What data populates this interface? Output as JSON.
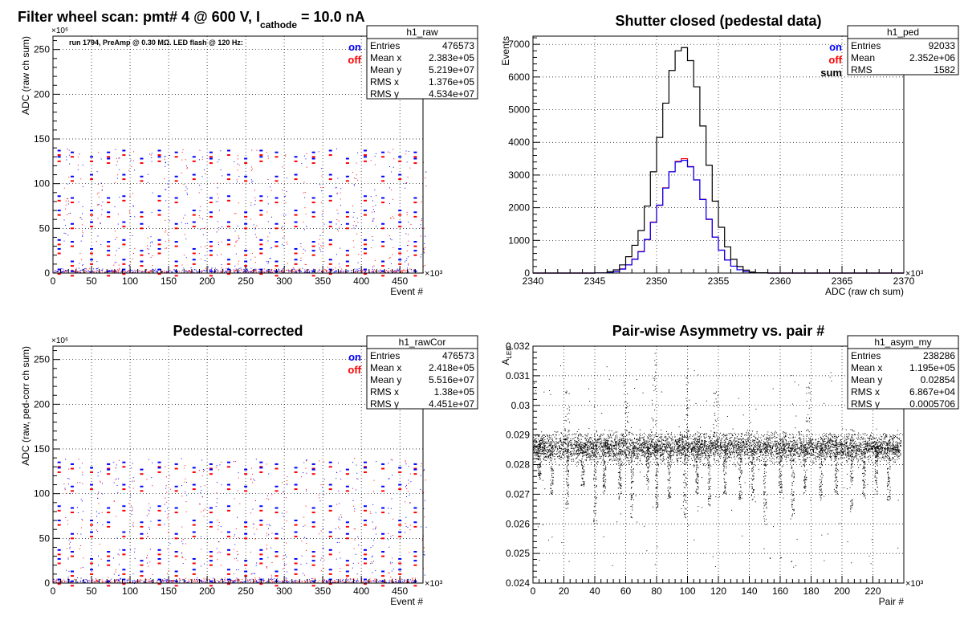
{
  "pads": [
    {
      "id": "raw",
      "title_main": "Filter wheel scan: pmt#   4 @   600 V, I",
      "title_sub": "cathode",
      "title_rest": "  = 10.0 nA",
      "annotation": "run 1794, PreAmp @ 0.30 MΩ. LED flash @  120 Hz:",
      "xlabel": "Event #",
      "ylabel": "ADC (raw ch sum)",
      "x_exponent": "×10³",
      "y_exponent": "×10⁶",
      "xlim": [
        0,
        480
      ],
      "ylim": [
        0,
        265
      ],
      "xticks": [
        "0",
        "50",
        "100",
        "150",
        "200",
        "250",
        "300",
        "350",
        "400",
        "450"
      ],
      "xtick_values": [
        0,
        50,
        100,
        150,
        200,
        250,
        300,
        350,
        400,
        450
      ],
      "yticks": [
        "0",
        "50",
        "100",
        "150",
        "200",
        "250"
      ],
      "ytick_values": [
        0,
        50,
        100,
        150,
        200,
        250
      ],
      "legend": [
        {
          "label": "on",
          "color": "#0000ff"
        },
        {
          "label": "off",
          "color": "#ff0000"
        }
      ],
      "stats": {
        "name": "h1_raw",
        "rows": [
          [
            "Entries",
            "476573"
          ],
          [
            "Mean x",
            "2.383e+05"
          ],
          [
            "Mean y",
            "5.219e+07"
          ],
          [
            "RMS x",
            "1.376e+05"
          ],
          [
            "RMS y",
            "4.534e+07"
          ]
        ]
      }
    },
    {
      "id": "ped",
      "title_main": "Shutter closed (pedestal data)",
      "xlabel": "ADC (raw ch sum)",
      "ylabel": "Events",
      "x_exponent": "×10³",
      "xlim": [
        2340,
        2370
      ],
      "ylim": [
        0,
        7250
      ],
      "xticks": [
        "2340",
        "2345",
        "2350",
        "2355",
        "2360",
        "2365",
        "2370"
      ],
      "xtick_values": [
        2340,
        2345,
        2350,
        2355,
        2360,
        2365,
        2370
      ],
      "yticks": [
        "0",
        "1000",
        "2000",
        "3000",
        "4000",
        "5000",
        "6000",
        "7000"
      ],
      "ytick_values": [
        0,
        1000,
        2000,
        3000,
        4000,
        5000,
        6000,
        7000
      ],
      "legend": [
        {
          "label": "on",
          "color": "#0000ff"
        },
        {
          "label": "off",
          "color": "#ff0000"
        },
        {
          "label": "sum",
          "color": "#000000"
        }
      ],
      "stats": {
        "name": "h1_ped",
        "rows": [
          [
            "Entries",
            "92033"
          ],
          [
            "Mean",
            "2.352e+06"
          ],
          [
            "RMS",
            "1582"
          ]
        ]
      }
    },
    {
      "id": "cor",
      "title_main": "Pedestal-corrected",
      "xlabel": "Event #",
      "ylabel": "ADC (raw, ped-corr ch sum)",
      "x_exponent": "×10³",
      "y_exponent": "×10⁶",
      "xlim": [
        0,
        480
      ],
      "ylim": [
        0,
        265
      ],
      "xticks": [
        "0",
        "50",
        "100",
        "150",
        "200",
        "250",
        "300",
        "350",
        "400",
        "450"
      ],
      "xtick_values": [
        0,
        50,
        100,
        150,
        200,
        250,
        300,
        350,
        400,
        450
      ],
      "yticks": [
        "0",
        "50",
        "100",
        "150",
        "200",
        "250"
      ],
      "ytick_values": [
        0,
        50,
        100,
        150,
        200,
        250
      ],
      "legend": [
        {
          "label": "on",
          "color": "#0000ff"
        },
        {
          "label": "off",
          "color": "#ff0000"
        }
      ],
      "stats": {
        "name": "h1_rawCor",
        "rows": [
          [
            "Entries",
            "476573"
          ],
          [
            "Mean x",
            "2.418e+05"
          ],
          [
            "Mean y",
            "5.516e+07"
          ],
          [
            "RMS x",
            "1.38e+05"
          ],
          [
            "RMS y",
            "4.451e+07"
          ]
        ]
      }
    },
    {
      "id": "asym",
      "title_main": "Pair-wise Asymmetry vs. pair #",
      "xlabel": "Pair #",
      "ylabel_main": "A",
      "ylabel_sub": "LED",
      "x_exponent": "×10³",
      "xlim": [
        0,
        240
      ],
      "ylim": [
        0.024,
        0.032
      ],
      "xticks": [
        "0",
        "20",
        "40",
        "60",
        "80",
        "100",
        "120",
        "140",
        "160",
        "180",
        "200",
        "220"
      ],
      "xtick_values": [
        0,
        20,
        40,
        60,
        80,
        100,
        120,
        140,
        160,
        180,
        200,
        220
      ],
      "yticks": [
        "0.024",
        "0.025",
        "0.026",
        "0.027",
        "0.028",
        "0.029",
        "0.03",
        "0.031",
        "0.032"
      ],
      "ytick_values": [
        0.024,
        0.025,
        0.026,
        0.027,
        0.028,
        0.029,
        0.03,
        0.031,
        0.032
      ],
      "stats": {
        "name": "h1_asym_my",
        "rows": [
          [
            "Entries",
            "238286"
          ],
          [
            "Mean x",
            "1.195e+05"
          ],
          [
            "Mean y",
            "0.02854"
          ],
          [
            "RMS x",
            "6.867e+04"
          ],
          [
            "RMS y",
            "0.0005706"
          ]
        ]
      }
    }
  ],
  "chart_data": [
    {
      "type": "scatter",
      "title": "Filter wheel scan: pmt#   4 @   600 V, I cathode  = 10.0 nA",
      "xlabel": "Event # (×10³)",
      "ylabel": "ADC (raw ch sum) (×10⁶)",
      "xlim": [
        0,
        480
      ],
      "ylim": [
        0,
        265
      ],
      "filter_wheel_steps": [
        {
          "x_start": 0,
          "x_end": 15,
          "levels_y": [
            137,
            130,
            110,
            86,
            70,
            57,
            37,
            27,
            15,
            4
          ]
        },
        {
          "x_start": 15,
          "x_end": 30,
          "levels_y": [
            137,
            130,
            110,
            86,
            70,
            57,
            37,
            27,
            15,
            4
          ]
        }
      ],
      "level_bands_y": [
        137,
        130,
        110,
        86,
        70,
        57,
        37,
        27,
        15,
        4
      ],
      "steps_x": [
        8,
        25,
        50,
        72,
        92,
        115,
        138,
        160,
        183,
        205,
        228,
        250,
        270,
        290,
        315,
        338,
        360,
        382,
        405,
        428,
        450,
        470
      ],
      "series": [
        {
          "name": "on",
          "color": "#0000ff"
        },
        {
          "name": "off",
          "color": "#ff0000"
        }
      ],
      "grid": true,
      "legend_position": "top-right"
    },
    {
      "type": "line",
      "title": "Shutter closed (pedestal data)",
      "xlabel": "ADC (raw ch sum) (×10³)",
      "ylabel": "Events",
      "xlim": [
        2340,
        2370
      ],
      "ylim": [
        0,
        7250
      ],
      "x": [
        2340,
        2341,
        2342,
        2343,
        2344,
        2345,
        2346,
        2346.5,
        2347,
        2347.5,
        2348,
        2348.5,
        2349,
        2349.5,
        2350,
        2350.5,
        2351,
        2351.5,
        2352,
        2352.5,
        2353,
        2353.5,
        2354,
        2354.5,
        2355,
        2355.5,
        2356,
        2356.5,
        2357,
        2357.5,
        2358,
        2359,
        2360,
        2362,
        2365,
        2370
      ],
      "series": [
        {
          "name": "sum",
          "color": "#000000",
          "values": [
            0,
            0,
            0,
            0,
            0,
            5,
            40,
            100,
            250,
            500,
            850,
            1300,
            2050,
            3100,
            4150,
            5200,
            6200,
            6800,
            6900,
            6500,
            5700,
            4500,
            3300,
            2200,
            1400,
            800,
            420,
            200,
            90,
            30,
            10,
            0,
            0,
            0,
            0,
            0
          ]
        },
        {
          "name": "on",
          "color": "#0000ff",
          "values": [
            0,
            0,
            0,
            0,
            0,
            3,
            20,
            50,
            120,
            250,
            420,
            650,
            1030,
            1550,
            2080,
            2600,
            3100,
            3400,
            3450,
            3250,
            2850,
            2250,
            1650,
            1100,
            700,
            400,
            210,
            100,
            45,
            15,
            5,
            0,
            0,
            0,
            0,
            0
          ]
        },
        {
          "name": "off",
          "color": "#ff0000",
          "values": [
            0,
            0,
            0,
            0,
            0,
            2,
            20,
            50,
            130,
            250,
            430,
            660,
            1020,
            1560,
            2070,
            2610,
            3100,
            3420,
            3500,
            3260,
            2850,
            2260,
            1640,
            1100,
            700,
            400,
            210,
            100,
            45,
            15,
            5,
            0,
            0,
            0,
            0,
            0
          ]
        }
      ],
      "grid": true,
      "legend_position": "top-right"
    },
    {
      "type": "scatter",
      "title": "Pedestal-corrected",
      "xlabel": "Event # (×10³)",
      "ylabel": "ADC (raw, ped-corr ch sum) (×10⁶)",
      "xlim": [
        0,
        480
      ],
      "ylim": [
        0,
        265
      ],
      "level_bands_y": [
        135,
        129,
        110,
        86,
        70,
        57,
        37,
        27,
        15,
        4
      ],
      "steps_x": [
        8,
        25,
        50,
        72,
        92,
        115,
        138,
        160,
        183,
        205,
        228,
        250,
        270,
        290,
        315,
        338,
        360,
        382,
        405,
        428,
        450,
        470
      ],
      "series": [
        {
          "name": "on",
          "color": "#0000ff"
        },
        {
          "name": "off",
          "color": "#ff0000"
        }
      ],
      "grid": true,
      "legend_position": "top-right"
    },
    {
      "type": "scatter",
      "title": "Pair-wise Asymmetry vs. pair #",
      "xlabel": "Pair # (×10³)",
      "ylabel": "A LED",
      "xlim": [
        0,
        240
      ],
      "ylim": [
        0.024,
        0.032
      ],
      "band_center_y": 0.0286,
      "band_halfwidth": 0.0006,
      "dips_x": [
        4,
        12,
        22,
        32,
        40,
        46,
        56,
        64,
        74,
        80,
        88,
        98,
        106,
        114,
        124,
        134,
        142,
        150,
        160,
        168,
        176,
        186,
        196,
        206,
        214,
        222,
        230
      ],
      "dips_min_y": [
        0.0275,
        0.027,
        0.0265,
        0.0272,
        0.0257,
        0.027,
        0.0268,
        0.0262,
        0.0272,
        0.0265,
        0.0268,
        0.0262,
        0.027,
        0.0265,
        0.027,
        0.0268,
        0.0268,
        0.0258,
        0.027,
        0.0262,
        0.027,
        0.0268,
        0.027,
        0.0265,
        0.0268,
        0.027,
        0.0268
      ],
      "spikes_x": [
        22,
        60,
        78,
        100,
        118,
        178
      ],
      "spikes_max_y": [
        0.0305,
        0.0308,
        0.0318,
        0.031,
        0.0305,
        0.0308
      ],
      "series": [
        {
          "color": "#000000"
        }
      ],
      "grid": true
    }
  ]
}
